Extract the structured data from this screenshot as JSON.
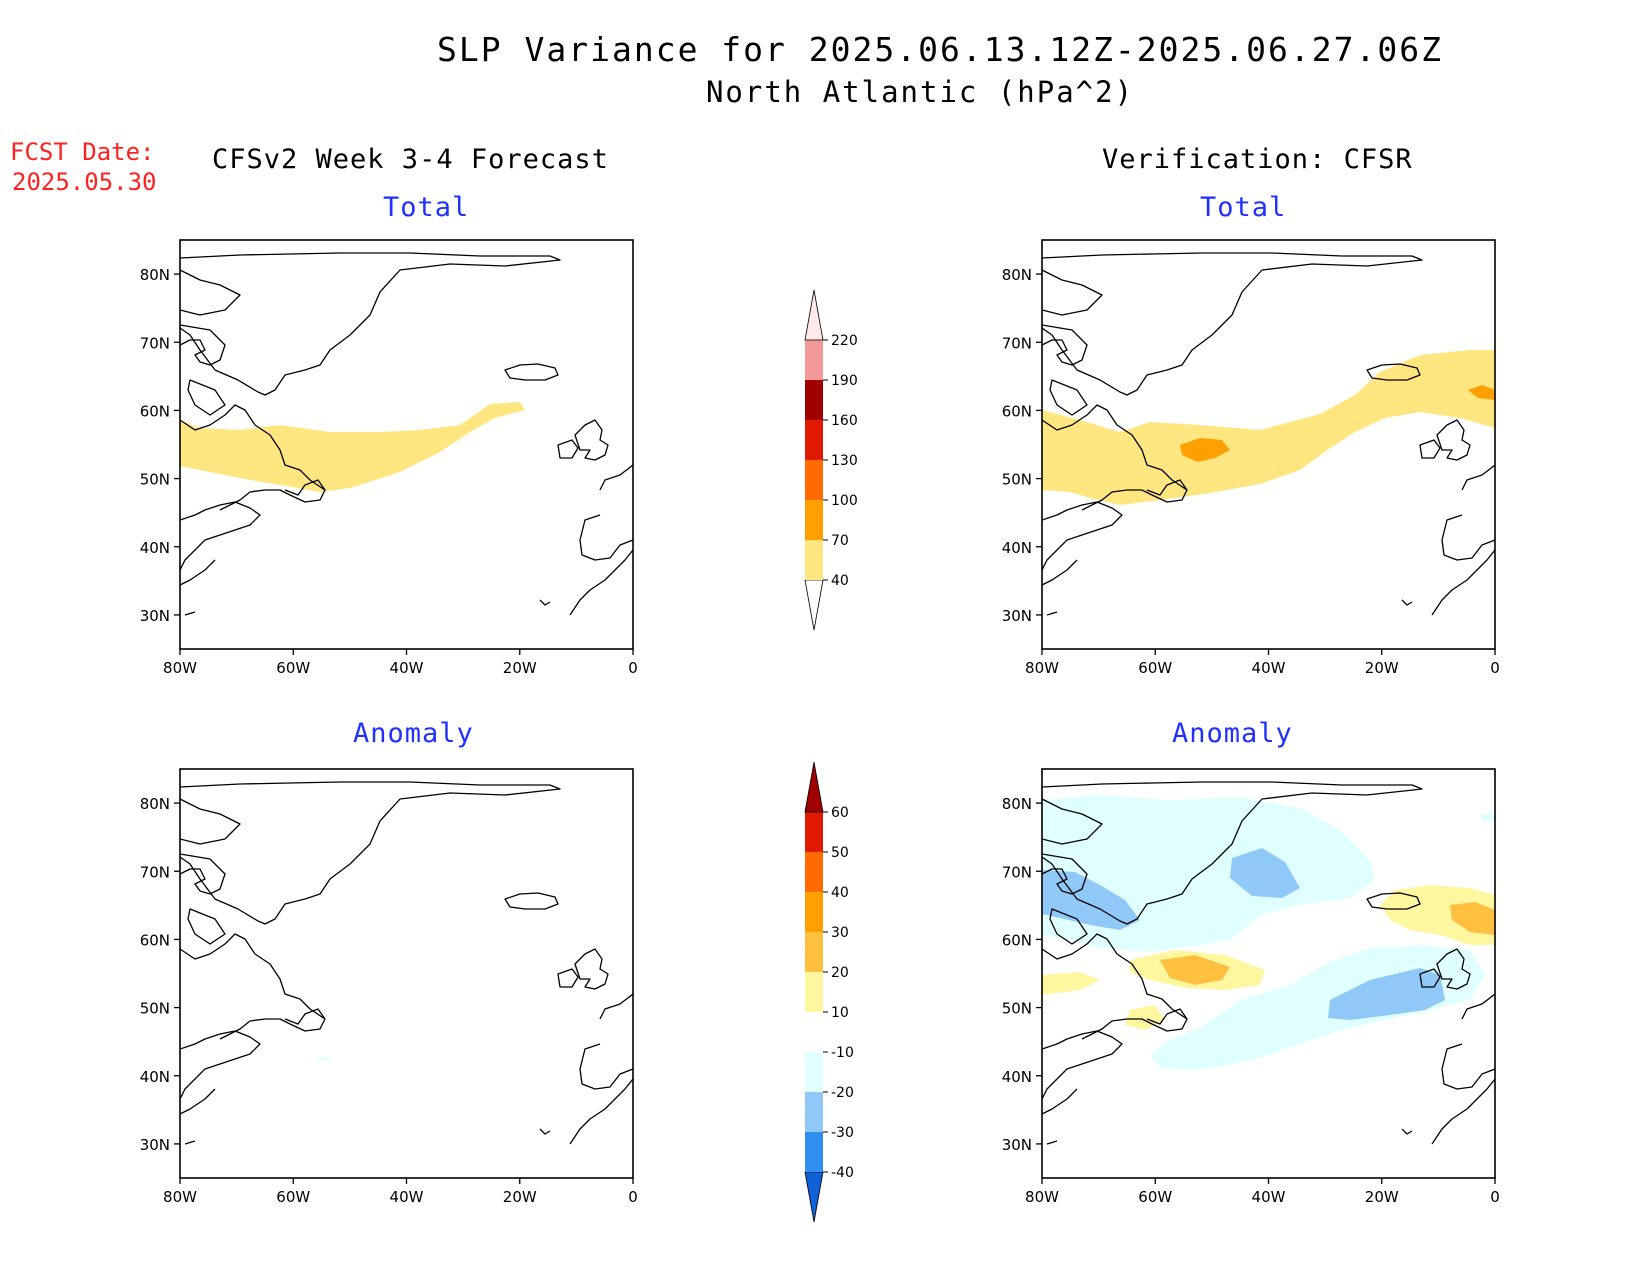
{
  "title": {
    "line1": "SLP Variance for 2025.06.13.12Z-2025.06.27.06Z",
    "line2": "North Atlantic (hPa^2)"
  },
  "fcst": {
    "label": "FCST Date:",
    "date": "2025.05.30"
  },
  "columns": {
    "left": "CFSv2 Week 3-4 Forecast",
    "right": "Verification: CFSR"
  },
  "panels": {
    "forecast_total": "Total",
    "verification_total": "Total",
    "forecast_anomaly": "Anomaly",
    "verification_anomaly": "Anomaly"
  },
  "axes": {
    "lat_labels": [
      "80N",
      "70N",
      "60N",
      "50N",
      "40N",
      "30N"
    ],
    "lat_values": [
      80,
      70,
      60,
      50,
      40,
      30
    ],
    "lon_labels": [
      "80W",
      "60W",
      "40W",
      "20W",
      "0"
    ],
    "lon_values": [
      -80,
      -60,
      -40,
      -20,
      0
    ],
    "lon_range": [
      -80,
      0
    ],
    "lat_range": [
      25,
      85
    ]
  },
  "colorbars": {
    "total": {
      "levels": [
        "40",
        "70",
        "100",
        "130",
        "160",
        "190",
        "220"
      ],
      "colors": [
        "#ffe680",
        "#ffa000",
        "#ff6a00",
        "#e01a00",
        "#a00000",
        "#f29898",
        "#ffe8e8"
      ]
    },
    "anomaly": {
      "levels": [
        "-40",
        "-30",
        "-20",
        "-10",
        "10",
        "20",
        "30",
        "40",
        "50",
        "60"
      ],
      "colors": [
        "#1060d8",
        "#3090f0",
        "#90c8f8",
        "#e0ffff",
        "#ffffff",
        "#fff6a0",
        "#ffc040",
        "#ffa000",
        "#ff6a00",
        "#e01a00",
        "#a00000"
      ]
    }
  },
  "colors": {
    "title_text": "#000000",
    "fcst_text": "#ff2020",
    "panel_subtitle": "#2030ff"
  }
}
